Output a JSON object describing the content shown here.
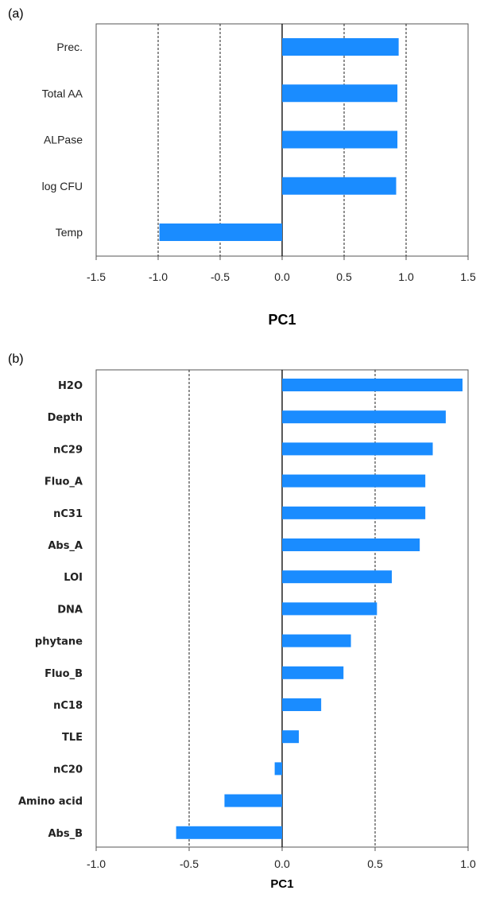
{
  "chart_data": [
    {
      "type": "bar",
      "orientation": "horizontal",
      "panel_label": "(a)",
      "categories": [
        "Prec.",
        "Total AA",
        "ALPase",
        "log CFU",
        "Temp"
      ],
      "values": [
        0.94,
        0.93,
        0.93,
        0.92,
        -0.99
      ],
      "xlabel": "PC1",
      "xlim": [
        -1.5,
        1.5
      ],
      "xticks": [
        "-1.5",
        "-1.0",
        "-0.5",
        "0.0",
        "0.5",
        "1.0",
        "1.5"
      ],
      "dashed_gridlines_at": [
        -1.0,
        -0.5,
        0.5,
        1.0
      ],
      "bar_color": "#1a8cff"
    },
    {
      "type": "bar",
      "orientation": "horizontal",
      "panel_label": "(b)",
      "categories": [
        "H2O",
        "Depth",
        "nC29",
        "Fluo_A",
        "nC31",
        "Abs_A",
        "LOI",
        "DNA",
        "phytane",
        "Fluo_B",
        "nC18",
        "TLE",
        "nC20",
        "Amino acid",
        "Abs_B"
      ],
      "values": [
        0.97,
        0.88,
        0.81,
        0.77,
        0.77,
        0.74,
        0.59,
        0.51,
        0.37,
        0.33,
        0.21,
        0.09,
        -0.04,
        -0.31,
        -0.57
      ],
      "xlabel": "PC1",
      "xlim": [
        -1.0,
        1.0
      ],
      "xticks": [
        "-1.0",
        "-0.5",
        "0.0",
        "0.5",
        "1.0"
      ],
      "dashed_gridlines_at": [
        -0.5,
        0.5
      ],
      "bar_color": "#1a8cff"
    }
  ]
}
